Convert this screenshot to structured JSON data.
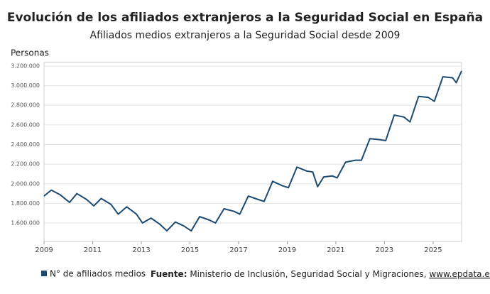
{
  "chart_data": {
    "type": "line",
    "title": "Evolución de los afiliados extranjeros a la Seguridad Social en España",
    "subtitle": "Afiliados medios extranjeros a la Seguridad Social desde 2009",
    "y_label": "Personas",
    "source_label": "Fuente:",
    "source": "Ministerio de Inclusión, Seguridad Social y Migraciones, ",
    "source_link": "www.epdata.es",
    "x": [
      2009.0,
      2009.3,
      2009.65,
      2010.05,
      2010.35,
      2010.75,
      2011.05,
      2011.35,
      2011.75,
      2012.05,
      2012.4,
      2012.8,
      2013.05,
      2013.4,
      2013.75,
      2014.05,
      2014.4,
      2014.75,
      2015.05,
      2015.4,
      2015.8,
      2016.05,
      2016.4,
      2016.8,
      2017.05,
      2017.4,
      2017.8,
      2018.05,
      2018.4,
      2018.8,
      2019.05,
      2019.4,
      2019.8,
      2020.05,
      2020.25,
      2020.5,
      2020.85,
      2021.05,
      2021.4,
      2021.8,
      2022.05,
      2022.4,
      2022.8,
      2023.05,
      2023.4,
      2023.8,
      2024.05,
      2024.4,
      2024.8,
      2025.05,
      2025.4,
      2025.8,
      2025.95,
      2026.17
    ],
    "series": [
      {
        "name": "N° de afiliados medios",
        "color": "#1b4a72",
        "values": [
          1875000,
          1935000,
          1890000,
          1810000,
          1900000,
          1840000,
          1775000,
          1850000,
          1790000,
          1690000,
          1765000,
          1690000,
          1600000,
          1650000,
          1590000,
          1520000,
          1610000,
          1570000,
          1520000,
          1665000,
          1630000,
          1600000,
          1745000,
          1720000,
          1690000,
          1875000,
          1840000,
          1820000,
          2025000,
          1980000,
          1960000,
          2170000,
          2130000,
          2120000,
          1970000,
          2070000,
          2080000,
          2060000,
          2220000,
          2240000,
          2240000,
          2460000,
          2450000,
          2440000,
          2700000,
          2680000,
          2630000,
          2890000,
          2880000,
          2840000,
          3090000,
          3080000,
          3030000,
          3150000
        ]
      }
    ],
    "xlim": [
      2009,
      2026.17
    ],
    "xticks": [
      2009,
      2011,
      2013,
      2015,
      2017,
      2019,
      2021,
      2023,
      2025
    ],
    "ylim": [
      1412000,
      3236000
    ],
    "yticks": [
      {
        "value": 1600000,
        "label": "1.600.000"
      },
      {
        "value": 1800000,
        "label": "1.800.000"
      },
      {
        "value": 2000000,
        "label": "2.000.000"
      },
      {
        "value": 2200000,
        "label": "2.200.000"
      },
      {
        "value": 2400000,
        "label": "2.400.000"
      },
      {
        "value": 2600000,
        "label": "2.600.000"
      },
      {
        "value": 2800000,
        "label": "2.800.000"
      },
      {
        "value": 3000000,
        "label": "3.000.000"
      },
      {
        "value": 3200000,
        "label": "3.200.000"
      }
    ],
    "grid": true
  }
}
